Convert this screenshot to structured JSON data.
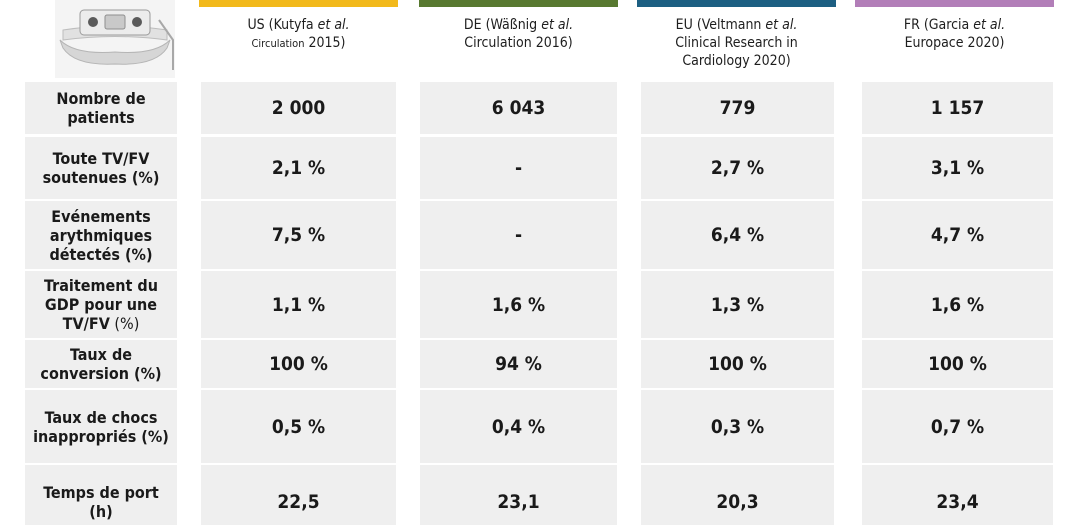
{
  "columns": [
    {
      "color": "#f2b91b",
      "prefix": "US (Kutyfa ",
      "etal": "et al.",
      "line2a": "Circulation",
      "line2b": " 2015)",
      "line3": ""
    },
    {
      "color": "#587930",
      "prefix": "DE (Wäßnig ",
      "etal": "et al.",
      "line2a": "Circulation 2016)",
      "line2b": "",
      "line3": ""
    },
    {
      "color": "#1d5f82",
      "prefix": "EU (Veltmann ",
      "etal": "et al.",
      "line2a": "Clinical Research in",
      "line2b": "",
      "line3": "Cardiology 2020)"
    },
    {
      "color": "#b27eb8",
      "prefix": "FR (Garcia ",
      "etal": "et al.",
      "line2a": "Europace 2020)",
      "line2b": "",
      "line3": ""
    }
  ],
  "rows": [
    {
      "label_lines": [
        "Nombre de",
        "patients"
      ],
      "values": [
        "2 000",
        "6 043",
        "779",
        "1 157"
      ]
    },
    {
      "label_lines": [
        "Toute TV/FV",
        "soutenues (%)"
      ],
      "values": [
        "2,1 %",
        "-",
        "2,7 %",
        "3,1 %"
      ]
    },
    {
      "label_lines": [
        "Evénements",
        "arythmiques",
        "détectés (%)"
      ],
      "values": [
        "7,5 %",
        "-",
        "6,4 %",
        "4,7 %"
      ]
    },
    {
      "label_lines": [
        "Traitement du",
        "GDP pour une",
        "TV/FV"
      ],
      "label_suffix": " (%)",
      "values": [
        "1,1 %",
        "1,6 %",
        "1,3 %",
        "1,6 %"
      ]
    },
    {
      "label_lines": [
        "Taux de",
        "conversion (%)"
      ],
      "values": [
        "100 %",
        "94 %",
        "100 %",
        "100 %"
      ]
    },
    {
      "label_lines": [
        "Taux de chocs",
        "inappropriés (%)"
      ],
      "values": [
        "0,5 %",
        "0,4 %",
        "0,3 %",
        "0,7 %"
      ]
    },
    {
      "label_lines": [
        "Temps de port",
        "(h)"
      ],
      "values": [
        "22,5",
        "23,1",
        "20,3",
        "23,4"
      ]
    }
  ]
}
